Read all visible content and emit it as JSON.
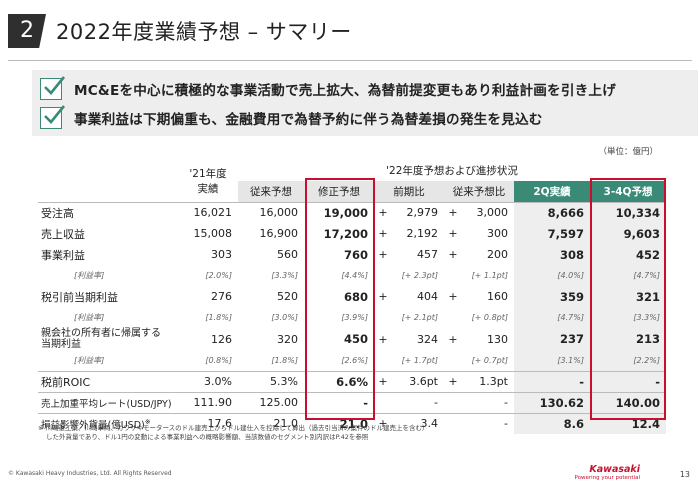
{
  "title": {
    "number": "2",
    "text": "2022年度業績予想 – サマリー"
  },
  "summary": {
    "bullets": [
      "MC&Eを中心に積極的な事業活動で売上拡大、為替前提変更もあり利益計画を引き上げ",
      "事業利益は下期偏重も、金融費用で為替予約に伴う為替差損の発生を見込む"
    ]
  },
  "unit": "（単位：億円）",
  "table": {
    "header": {
      "fy21_line1": "'21年度",
      "fy21_line2": "実績",
      "fy22_group": "'22年度予想および進捗状況",
      "col_prev": "従来予想",
      "col_revised": "修正予想",
      "col_yoy": "前期比",
      "col_vs_prev": "従来予想比",
      "col_2q": "2Q実績",
      "col_34q": "3-4Q予想"
    },
    "rows": [
      {
        "label": "受注高",
        "fy21": "16,021",
        "prev": "16,000",
        "revised": "19,000",
        "yoy_sign": "+",
        "yoy": "2,979",
        "vp_sign": "+",
        "vp": "3,000",
        "q2": "8,666",
        "q34": "10,334"
      },
      {
        "label": "売上収益",
        "fy21": "15,008",
        "prev": "16,900",
        "revised": "17,200",
        "yoy_sign": "+",
        "yoy": "2,192",
        "vp_sign": "+",
        "vp": "300",
        "q2": "7,597",
        "q34": "9,603"
      },
      {
        "label": "事業利益",
        "fy21": "303",
        "prev": "560",
        "revised": "760",
        "yoy_sign": "+",
        "yoy": "457",
        "vp_sign": "+",
        "vp": "200",
        "q2": "308",
        "q34": "452",
        "ratio": {
          "label": "[利益率]",
          "fy21": "[2.0%]",
          "prev": "[3.3%]",
          "revised": "[4.4%]",
          "yoy": "[+ 2.3pt]",
          "vp": "[+ 1.1pt]",
          "q2": "[4.0%]",
          "q34": "[4.7%]"
        }
      },
      {
        "label": "税引前当期利益",
        "fy21": "276",
        "prev": "520",
        "revised": "680",
        "yoy_sign": "+",
        "yoy": "404",
        "vp_sign": "+",
        "vp": "160",
        "q2": "359",
        "q34": "321",
        "ratio": {
          "label": "[利益率]",
          "fy21": "[1.8%]",
          "prev": "[3.0%]",
          "revised": "[3.9%]",
          "yoy": "[+ 2.1pt]",
          "vp": "[+ 0.8pt]",
          "q2": "[4.7%]",
          "q34": "[3.3%]"
        }
      },
      {
        "label": "親会社の所有者に帰属する",
        "label2": "当期利益",
        "fy21": "126",
        "prev": "320",
        "revised": "450",
        "yoy_sign": "+",
        "yoy": "324",
        "vp_sign": "+",
        "vp": "130",
        "q2": "237",
        "q34": "213",
        "ratio": {
          "label": "[利益率]",
          "fy21": "[0.8%]",
          "prev": "[1.8%]",
          "revised": "[2.6%]",
          "yoy": "[+ 1.7pt]",
          "vp": "[+ 0.7pt]",
          "q2": "[3.1%]",
          "q34": "[2.2%]"
        }
      },
      {
        "label": "税前ROIC",
        "fy21": "3.0%",
        "prev": "5.3%",
        "revised": "6.6%",
        "yoy_sign": "+",
        "yoy": "3.6pt",
        "vp_sign": "+",
        "vp": "1.3pt",
        "q2": "-",
        "q34": "-"
      },
      {
        "label": "売上加重平均レート(USD/JPY)",
        "fy21": "111.90",
        "prev": "125.00",
        "revised": "-",
        "yoy_sign": "",
        "yoy": "-",
        "vp_sign": "",
        "vp": "-",
        "q2": "130.62",
        "q34": "140.00"
      },
      {
        "label": "損益影響外貨量(億USD)",
        "label_sup": "※",
        "fy21": "17.6",
        "prev": "21.0",
        "revised": "21.0",
        "yoy_sign": "+",
        "yoy": "3.4",
        "vp_sign": "",
        "vp": "-",
        "q2": "8.6",
        "q34": "12.4"
      }
    ]
  },
  "footnote": {
    "line1": "※ 川崎重工業、川崎車両、カワサキモータースのドル建売上からドル建仕入を控除して算出（過去引当済み案件のドル建売上を含む）",
    "line2": "した外貨量であり、ドル1円の変動による事業利益への概略影響額、当該数値のセグメント別内訳はP.42を参照"
  },
  "footer": {
    "copyright": "© Kawasaki Heavy Industries, Ltd. All Rights Reserved",
    "logo_text": "Kawasaki",
    "logo_tagline": "Powering your potential",
    "page": "13"
  },
  "colors": {
    "accent_green": "#3a8a78",
    "highlight_red": "#c8102e",
    "header_gray": "#e6e6e6"
  }
}
